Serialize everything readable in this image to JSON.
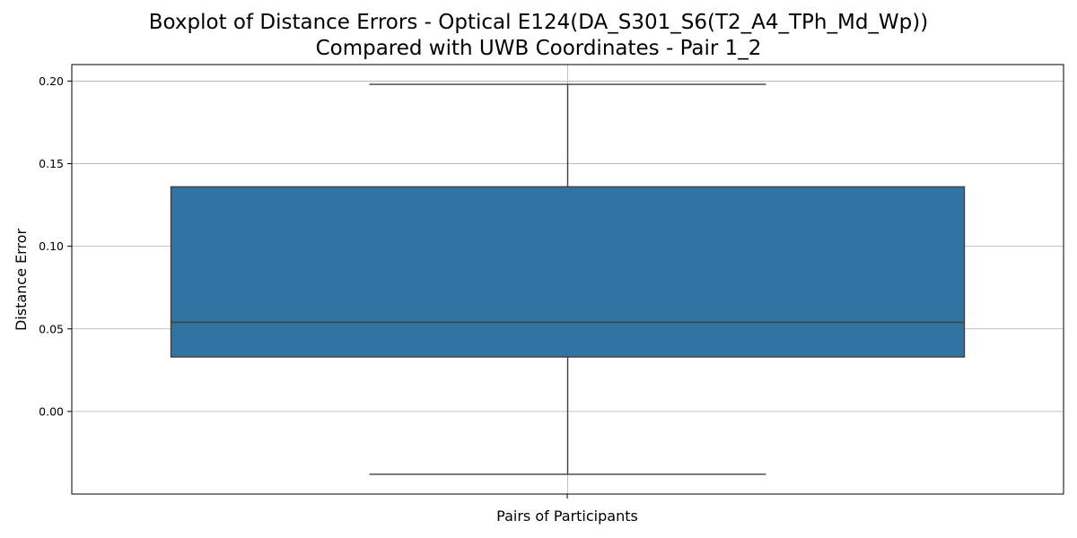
{
  "chart_data": {
    "type": "box",
    "title_lines": [
      "Boxplot of Distance Errors - Optical E124(DA_S301_S6(T2_A4_TPh_Md_Wp))",
      "Compared with UWB Coordinates - Pair 1_2"
    ],
    "xlabel": "Pairs of Participants",
    "ylabel": "Distance Error",
    "ylim": [
      -0.05,
      0.21
    ],
    "yticks": [
      0.0,
      0.05,
      0.1,
      0.15,
      0.2
    ],
    "ytick_labels": [
      "0.00",
      "0.05",
      "0.10",
      "0.15",
      "0.20"
    ],
    "grid": true,
    "series": [
      {
        "whisker_low": -0.038,
        "q1": 0.033,
        "median": 0.054,
        "q3": 0.136,
        "whisker_high": 0.198
      }
    ],
    "colors": {
      "box": "#3274a1",
      "edge": "#3f3f3f",
      "grid": "#b0b0b0"
    }
  }
}
